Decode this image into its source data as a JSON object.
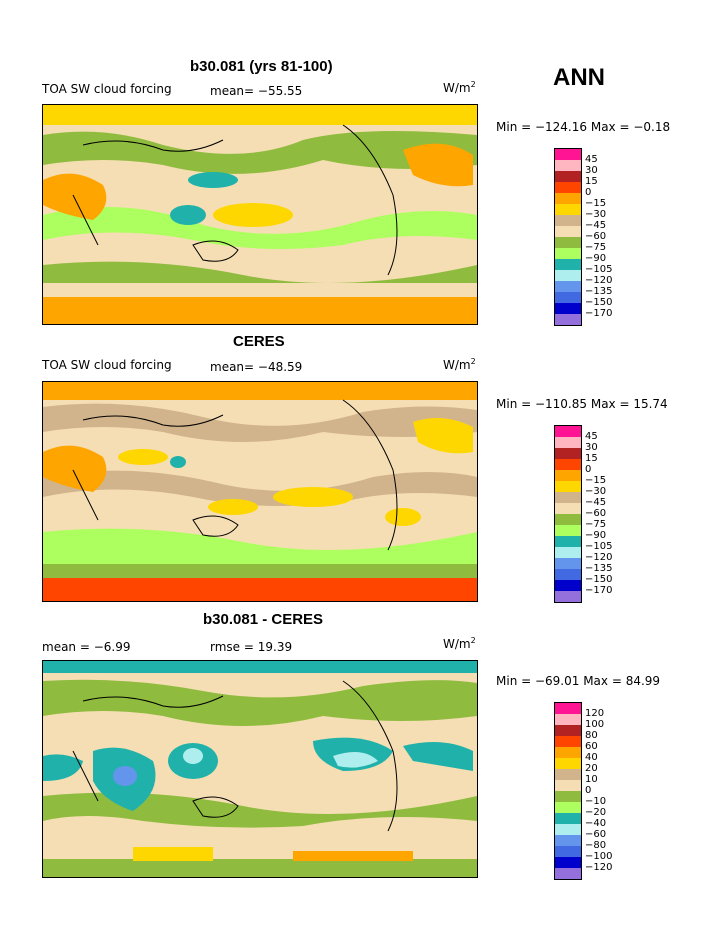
{
  "season": "ANN",
  "panels": [
    {
      "title": "b30.081 (yrs 81-100)",
      "left_label": "TOA SW cloud forcing",
      "mean_text": "mean= −55.55",
      "rmse_text": "",
      "unit_base": "W/m",
      "unit_exp": "2",
      "minmax_text": "Min = −124.16 Max =  −0.18",
      "levels": [
        "45",
        "30",
        "15",
        "0",
        "−15",
        "−30",
        "−45",
        "−60",
        "−75",
        "−90",
        "−105",
        "−120",
        "−135",
        "−150",
        "−170"
      ],
      "colors": [
        "#ff1493",
        "#ffb6c1",
        "#b22222",
        "#ff4500",
        "#ffa500",
        "#ffd700",
        "#d2b48c",
        "#f5deb3",
        "#8fbc3f",
        "#adff5f",
        "#20b2aa",
        "#afeeee",
        "#6495ed",
        "#4169e1",
        "#0000cd",
        "#9370db"
      ]
    },
    {
      "title": "CERES",
      "left_label": "TOA SW cloud forcing",
      "mean_text": "mean= −48.59",
      "rmse_text": "",
      "unit_base": "W/m",
      "unit_exp": "2",
      "minmax_text": "Min = −110.85 Max =  15.74",
      "levels": [
        "45",
        "30",
        "15",
        "0",
        "−15",
        "−30",
        "−45",
        "−60",
        "−75",
        "−90",
        "−105",
        "−120",
        "−135",
        "−150",
        "−170"
      ],
      "colors": [
        "#ff1493",
        "#ffb6c1",
        "#b22222",
        "#ff4500",
        "#ffa500",
        "#ffd700",
        "#d2b48c",
        "#f5deb3",
        "#8fbc3f",
        "#adff5f",
        "#20b2aa",
        "#afeeee",
        "#6495ed",
        "#4169e1",
        "#0000cd",
        "#9370db"
      ]
    },
    {
      "title": "b30.081 - CERES",
      "left_label": "mean =   −6.99",
      "mean_text": "",
      "rmse_text": "rmse =  19.39",
      "unit_base": "W/m",
      "unit_exp": "2",
      "minmax_text": "Min = −69.01 Max =  84.99",
      "levels": [
        "120",
        "100",
        "80",
        "60",
        "40",
        "20",
        "10",
        "0",
        "−10",
        "−20",
        "−40",
        "−60",
        "−80",
        "−100",
        "−120"
      ],
      "colors": [
        "#ff1493",
        "#ffb6c1",
        "#b22222",
        "#ff4500",
        "#ffa500",
        "#ffd700",
        "#d2b48c",
        "#f5deb3",
        "#8fbc3f",
        "#adff5f",
        "#20b2aa",
        "#afeeee",
        "#6495ed",
        "#4169e1",
        "#0000cd",
        "#9370db"
      ]
    }
  ]
}
